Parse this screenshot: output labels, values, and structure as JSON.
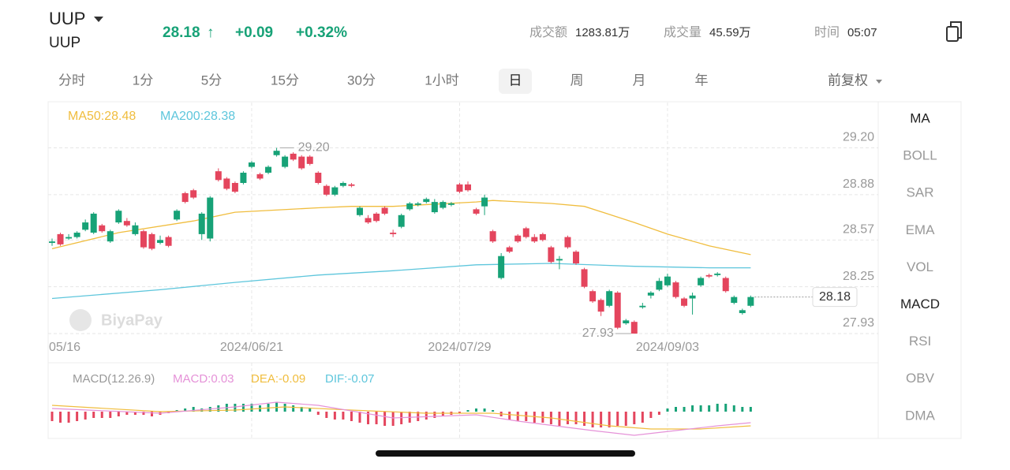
{
  "header": {
    "symbol": "UUP",
    "subtitle": "UUP",
    "price": "28.18",
    "arrow": "↑",
    "change": "+0.09",
    "change_pct": "+0.32%",
    "stats": [
      {
        "label": "成交额",
        "value": "1283.81万"
      },
      {
        "label": "成交量",
        "value": "45.59万"
      },
      {
        "label": "时间",
        "value": "05:07"
      }
    ]
  },
  "tabs": {
    "items": [
      "分时",
      "1分",
      "5分",
      "15分",
      "30分",
      "1小时",
      "日",
      "周",
      "月",
      "年"
    ],
    "selected": 6,
    "adjust": "前复权"
  },
  "indicators": {
    "items": [
      "MA",
      "BOLL",
      "SAR",
      "EMA",
      "VOL",
      "MACD",
      "RSI",
      "OBV",
      "DMA"
    ],
    "active": [
      0,
      5
    ]
  },
  "watermark": "BiyaPay",
  "chart_data": {
    "type": "candlestick",
    "up_color": "#17a277",
    "down_color": "#e4455d",
    "open": [
      28.55,
      28.61,
      28.58,
      28.59,
      28.64,
      28.62,
      28.67,
      28.56,
      28.69,
      28.7,
      28.61,
      28.63,
      28.61,
      28.55,
      28.59,
      28.71,
      28.89,
      28.91,
      28.61,
      28.58,
      29.04,
      28.99,
      28.96,
      28.96,
      29.07,
      29.02,
      29.03,
      29.15,
      29.07,
      29.16,
      29.14,
      29.14,
      29.03,
      28.94,
      28.88,
      28.94,
      28.95,
      28.74,
      28.72,
      28.75,
      28.79,
      28.62,
      28.66,
      28.78,
      28.81,
      28.83,
      28.76,
      28.79,
      28.81,
      28.95,
      28.95,
      28.78,
      28.8,
      28.63,
      28.31,
      28.52,
      28.6,
      28.65,
      28.59,
      28.61,
      28.52,
      28.43,
      28.59,
      28.49,
      28.37,
      28.22,
      28.16,
      28.12,
      28.21,
      28.0,
      28.01,
      28.11,
      28.19,
      28.23,
      28.26,
      28.28,
      28.17,
      28.17,
      28.26,
      28.33,
      28.33,
      28.31,
      28.14,
      28.07,
      28.12
    ],
    "high": [
      28.58,
      28.62,
      28.61,
      28.63,
      28.71,
      28.76,
      28.68,
      28.64,
      28.78,
      28.72,
      28.69,
      28.64,
      28.62,
      28.6,
      28.6,
      28.78,
      28.9,
      28.92,
      28.76,
      28.87,
      29.06,
      29.0,
      28.97,
      29.04,
      29.11,
      29.03,
      29.08,
      29.2,
      29.15,
      29.17,
      29.15,
      29.15,
      29.04,
      28.95,
      28.94,
      28.97,
      28.96,
      28.8,
      28.74,
      28.76,
      28.8,
      28.64,
      28.75,
      28.83,
      28.83,
      28.86,
      28.85,
      28.84,
      28.83,
      28.96,
      28.97,
      28.79,
      28.88,
      28.64,
      28.48,
      28.53,
      28.61,
      28.66,
      28.61,
      28.62,
      28.53,
      28.46,
      28.6,
      28.5,
      28.38,
      28.23,
      28.17,
      28.23,
      28.22,
      28.03,
      28.02,
      28.14,
      28.22,
      28.31,
      28.34,
      28.29,
      28.18,
      28.21,
      28.32,
      28.34,
      28.35,
      28.32,
      28.19,
      28.1,
      28.19
    ],
    "low": [
      28.53,
      28.53,
      28.57,
      28.58,
      28.63,
      28.61,
      28.62,
      28.55,
      28.68,
      28.66,
      28.6,
      28.51,
      28.5,
      28.54,
      28.52,
      28.7,
      28.82,
      28.85,
      28.57,
      28.56,
      28.97,
      28.91,
      28.89,
      28.95,
      29.06,
      28.98,
      29.02,
      29.14,
      29.06,
      29.11,
      29.05,
      29.08,
      28.95,
      28.87,
      28.87,
      28.93,
      28.93,
      28.73,
      28.68,
      28.69,
      28.74,
      28.59,
      28.65,
      28.77,
      28.8,
      28.82,
      28.75,
      28.78,
      28.8,
      28.89,
      28.9,
      28.74,
      28.74,
      28.55,
      28.3,
      28.48,
      28.55,
      28.58,
      28.55,
      28.56,
      28.41,
      28.37,
      28.51,
      28.4,
      28.24,
      28.14,
      28.05,
      28.11,
      27.96,
      27.99,
      27.93,
      28.1,
      28.17,
      28.22,
      28.25,
      28.17,
      28.11,
      28.06,
      28.25,
      28.31,
      28.32,
      28.21,
      28.13,
      28.06,
      28.11
    ],
    "close": [
      28.56,
      28.54,
      28.59,
      28.62,
      28.69,
      28.75,
      28.63,
      28.63,
      28.77,
      28.67,
      28.67,
      28.52,
      28.51,
      28.57,
      28.53,
      28.77,
      28.83,
      28.86,
      28.75,
      28.86,
      28.98,
      28.92,
      28.9,
      29.03,
      29.1,
      28.99,
      29.07,
      29.18,
      29.14,
      29.12,
      29.06,
      29.09,
      28.96,
      28.88,
      28.93,
      28.96,
      28.94,
      28.79,
      28.69,
      28.7,
      28.75,
      28.61,
      28.74,
      28.82,
      28.82,
      28.85,
      28.83,
      28.83,
      28.82,
      28.9,
      28.91,
      28.75,
      28.86,
      28.56,
      28.46,
      28.49,
      28.56,
      28.59,
      28.56,
      28.57,
      28.42,
      28.44,
      28.52,
      28.41,
      28.25,
      28.15,
      28.08,
      28.22,
      27.97,
      28.02,
      27.93,
      28.12,
      28.21,
      28.29,
      28.32,
      28.18,
      28.12,
      28.19,
      28.31,
      28.32,
      28.34,
      28.22,
      28.18,
      28.09,
      28.18
    ],
    "ylim": [
      27.93,
      29.51
    ],
    "yticks": [
      {
        "value": 29.2,
        "label": "29.20"
      },
      28.88,
      28.57,
      28.25,
      27.93
    ],
    "xticks": [
      {
        "value": 0,
        "label": "05/16"
      },
      {
        "value": 24,
        "label": "2024/06/21"
      },
      {
        "value": 49,
        "label": "2024/07/29"
      },
      {
        "value": 74,
        "label": "2024/09/03"
      }
    ],
    "high_label": "29.20",
    "low_label": "27.93",
    "last_label": "28.18",
    "series": [
      {
        "label": "MA50:28.48",
        "color": "#f0bd3e",
        "x": [
          0,
          8,
          17,
          22,
          32,
          36,
          41,
          51,
          53,
          60,
          64,
          70,
          74,
          79,
          84
        ],
        "values": [
          28.51,
          28.62,
          28.7,
          28.76,
          28.79,
          28.8,
          28.8,
          28.83,
          28.84,
          28.82,
          28.8,
          28.69,
          28.61,
          28.53,
          28.47
        ]
      },
      {
        "label": "MA200:28.38",
        "color": "#5ec6dc",
        "x": [
          0,
          13,
          22,
          32,
          41,
          51,
          60,
          70,
          79,
          84
        ],
        "values": [
          28.17,
          28.23,
          28.28,
          28.33,
          28.36,
          28.4,
          28.41,
          28.39,
          28.38,
          28.38
        ]
      }
    ],
    "macd": {
      "title": "MACD(12.26.9)",
      "ylim": [
        -0.165,
        0.16
      ],
      "histogram": {
        "label": "MACD:0.03",
        "color": "#e592d8",
        "values": [
          -0.06,
          -0.07,
          -0.07,
          -0.06,
          -0.05,
          -0.04,
          -0.04,
          -0.04,
          -0.03,
          -0.02,
          -0.02,
          -0.02,
          -0.03,
          -0.02,
          -0.01,
          0.01,
          0.02,
          0.03,
          0.02,
          0.03,
          0.04,
          0.05,
          0.05,
          0.05,
          0.05,
          0.04,
          0.05,
          0.06,
          0.05,
          0.04,
          0.03,
          0.02,
          -0.02,
          -0.04,
          -0.05,
          -0.05,
          -0.06,
          -0.07,
          -0.08,
          -0.08,
          -0.09,
          -0.09,
          -0.08,
          -0.07,
          -0.06,
          -0.05,
          -0.04,
          -0.03,
          -0.02,
          -0.01,
          0.01,
          0.02,
          0.02,
          0.01,
          -0.03,
          -0.05,
          -0.06,
          -0.06,
          -0.07,
          -0.07,
          -0.08,
          -0.09,
          -0.08,
          -0.08,
          -0.09,
          -0.1,
          -0.1,
          -0.1,
          -0.09,
          -0.09,
          -0.08,
          -0.07,
          -0.04,
          -0.02,
          0.02,
          0.03,
          0.03,
          0.04,
          0.04,
          0.04,
          0.05,
          0.05,
          0.04,
          0.03,
          0.03
        ]
      },
      "dea": {
        "label": "DEA:-0.09",
        "color": "#f0bd3e",
        "x": [
          0,
          13,
          22,
          28,
          36,
          45,
          53,
          60,
          67,
          72,
          78,
          84
        ],
        "values": [
          0.04,
          0.0,
          0.01,
          0.03,
          0.01,
          -0.01,
          -0.01,
          -0.04,
          -0.09,
          -0.11,
          -0.11,
          -0.09
        ]
      },
      "dif": {
        "label": "DIF:-0.07",
        "color": "#5ec6dc",
        "line_color": "#e592d8",
        "x": [
          0,
          13,
          22,
          27,
          32,
          41,
          51,
          56,
          65,
          70,
          75,
          80,
          84
        ],
        "values": [
          0.02,
          -0.01,
          0.03,
          0.06,
          0.04,
          -0.04,
          -0.02,
          -0.06,
          -0.12,
          -0.15,
          -0.12,
          -0.09,
          -0.07
        ]
      }
    }
  }
}
